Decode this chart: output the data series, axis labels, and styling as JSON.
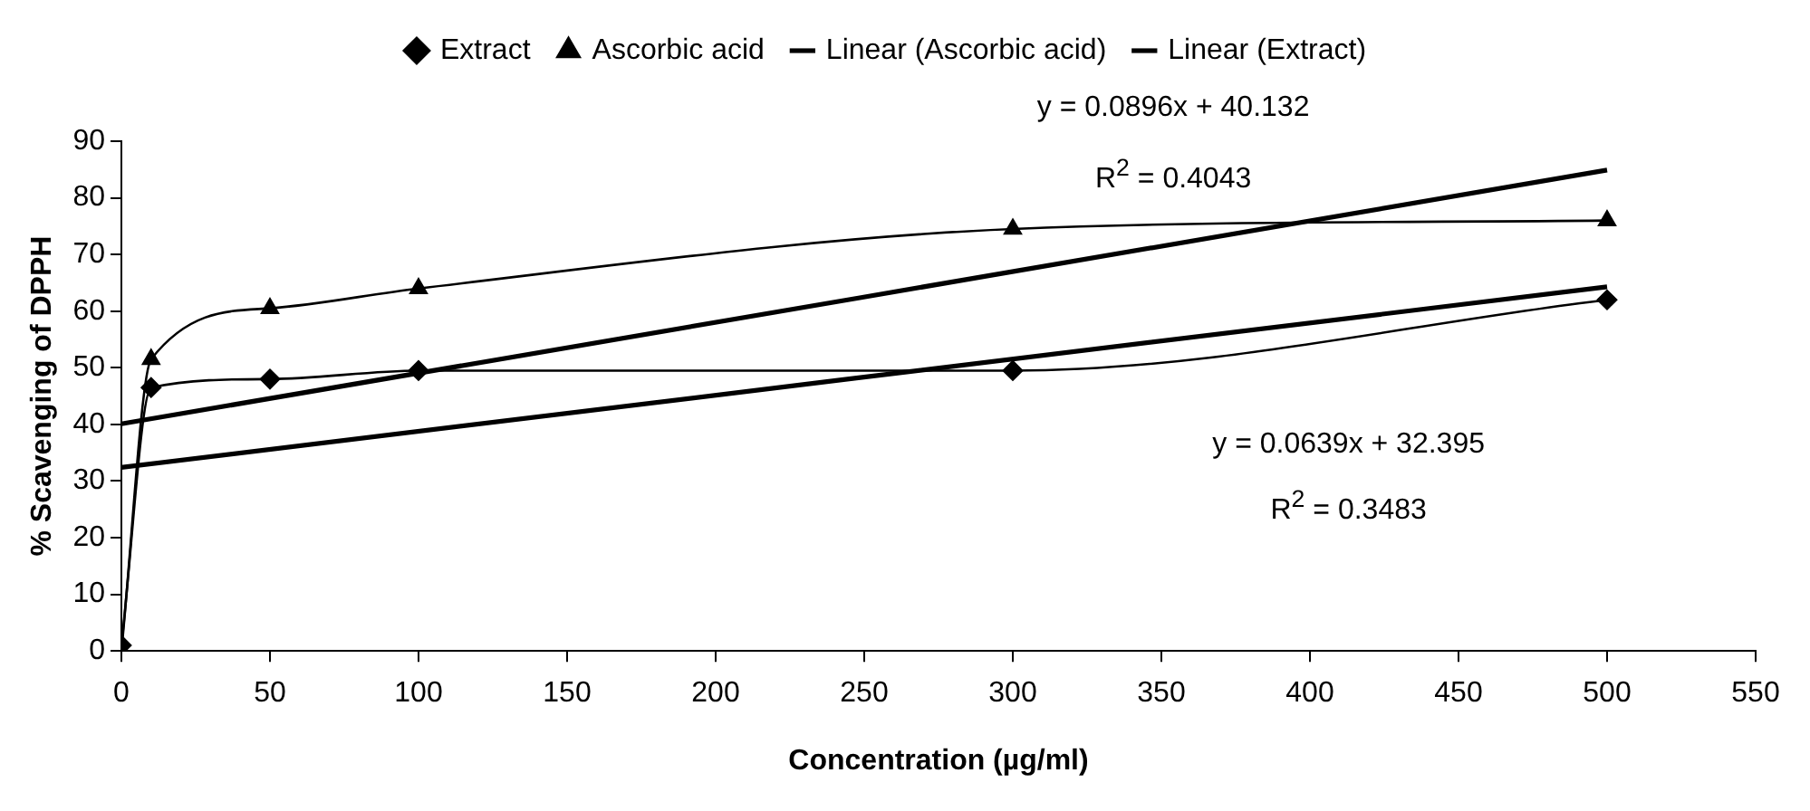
{
  "chart_data": {
    "type": "line",
    "xlabel": "Concentration (µg/ml)",
    "ylabel": "% Scavenging of DPPH",
    "xlim": [
      0,
      550
    ],
    "xticks": [
      0,
      50,
      100,
      150,
      200,
      250,
      300,
      350,
      400,
      450,
      500,
      550
    ],
    "ylim": [
      0,
      90
    ],
    "yticks": [
      0,
      10,
      20,
      30,
      40,
      50,
      60,
      70,
      80,
      90
    ],
    "grid": false,
    "legend": "top",
    "series": [
      {
        "name": "Extract",
        "color": "#000000",
        "marker": "diamond",
        "x": [
          0,
          10,
          50,
          100,
          300,
          500
        ],
        "values": [
          1,
          46.5,
          48,
          49.5,
          49.5,
          62
        ]
      },
      {
        "name": "Ascorbic acid",
        "color": "#000000",
        "marker": "triangle",
        "x": [
          0,
          10,
          50,
          100,
          300,
          500
        ],
        "values": [
          0,
          51.5,
          60.5,
          64,
          74.5,
          76
        ]
      },
      {
        "name": "Linear (Ascorbic acid)",
        "color": "#000000",
        "marker": "none",
        "x": [
          0,
          500
        ],
        "values": [
          40.1,
          84.9
        ]
      },
      {
        "name": "Linear (Extract)",
        "color": "#000000",
        "marker": "none",
        "x": [
          0,
          500
        ],
        "values": [
          32.4,
          64.3
        ]
      }
    ],
    "annotations": [
      "y = 0.0896x + 40.132",
      "R$^{2}$ = 0.4043",
      "y = 0.0639x + 32.395",
      "R$^{2}$ = 0.3483"
    ]
  }
}
